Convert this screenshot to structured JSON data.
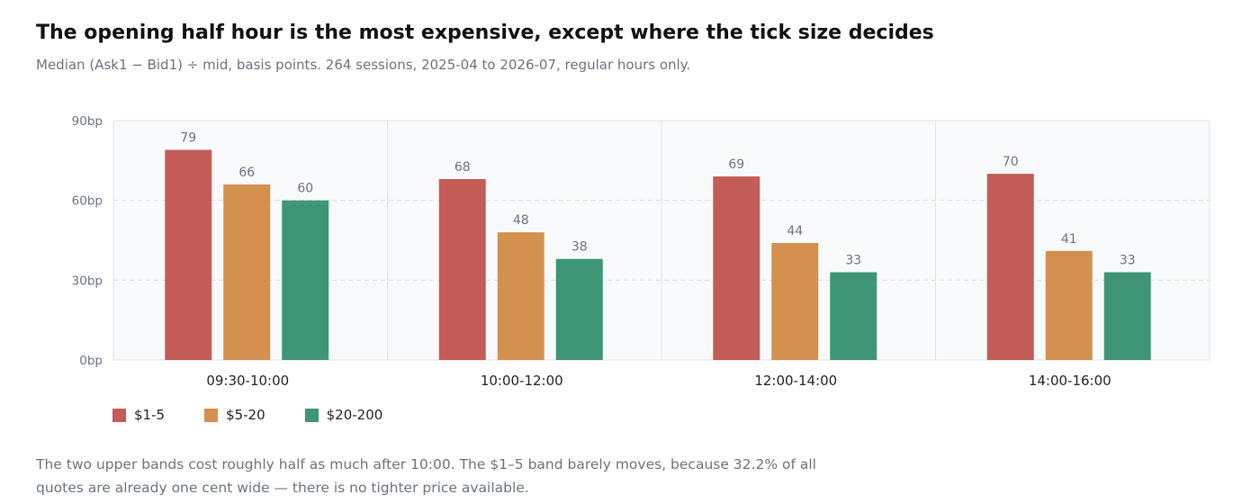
{
  "title": "The opening half hour is the most expensive, except where the tick size decides",
  "subtitle": "Median (Ask1 − Bid1) ÷ mid, basis points. 264 sessions, 2025-04 to 2026-07, regular hours only.",
  "footnote": "The two upper bands cost roughly half as much after 10:00. The $1–5 band barely moves, because 32.2% of all quotes are already one cent wide — there is no tighter price available.",
  "colors": {
    "series_1": "#c45c58",
    "series_2": "#d4904e",
    "series_3": "#3e9677"
  },
  "chart_data": {
    "type": "bar",
    "title": "The opening half hour is the most expensive, except where the tick size decides",
    "xlabel": "",
    "ylabel": "",
    "ylim": [
      0,
      90
    ],
    "y_ticks": [
      0,
      30,
      60,
      90
    ],
    "y_tick_labels": [
      "0bp",
      "30bp",
      "60bp",
      "90bp"
    ],
    "categories": [
      "09:30-10:00",
      "10:00-12:00",
      "12:00-14:00",
      "14:00-16:00"
    ],
    "series": [
      {
        "name": "$1-5",
        "color": "#c45c58",
        "values": [
          79,
          68,
          69,
          70
        ]
      },
      {
        "name": "$5-20",
        "color": "#d4904e",
        "values": [
          66,
          48,
          44,
          41
        ]
      },
      {
        "name": "$20-200",
        "color": "#3e9677",
        "values": [
          60,
          38,
          33,
          33
        ]
      }
    ],
    "grid": true,
    "legend_position": "bottom-left"
  }
}
